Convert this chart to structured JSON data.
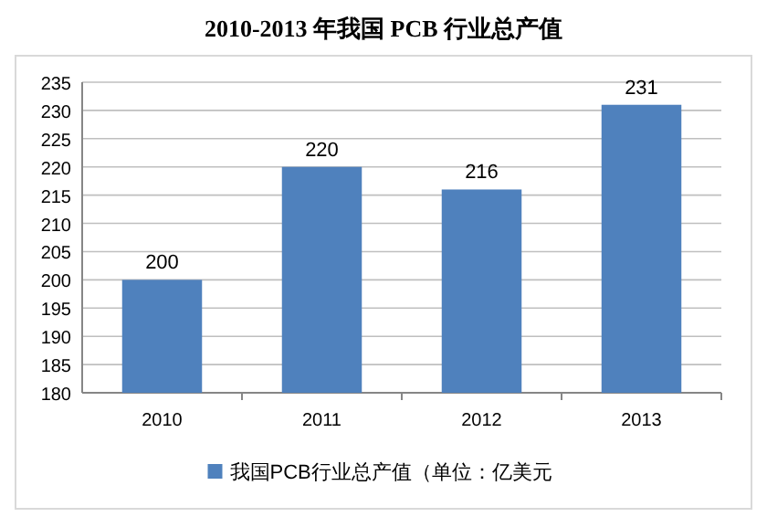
{
  "chart_data": {
    "type": "bar",
    "title": "2010-2013 年我国 PCB 行业总产值",
    "categories": [
      "2010",
      "2011",
      "2012",
      "2013"
    ],
    "series": [
      {
        "name": "我国PCB行业总产值（单位：亿美元",
        "color": "#4f81bd",
        "values": [
          200,
          220,
          216,
          231
        ]
      }
    ],
    "ylim": [
      180,
      235
    ],
    "yticks": [
      180,
      185,
      190,
      195,
      200,
      205,
      210,
      215,
      220,
      225,
      230,
      235
    ],
    "grid": "y",
    "legend": "bottom",
    "data_labels": true
  }
}
